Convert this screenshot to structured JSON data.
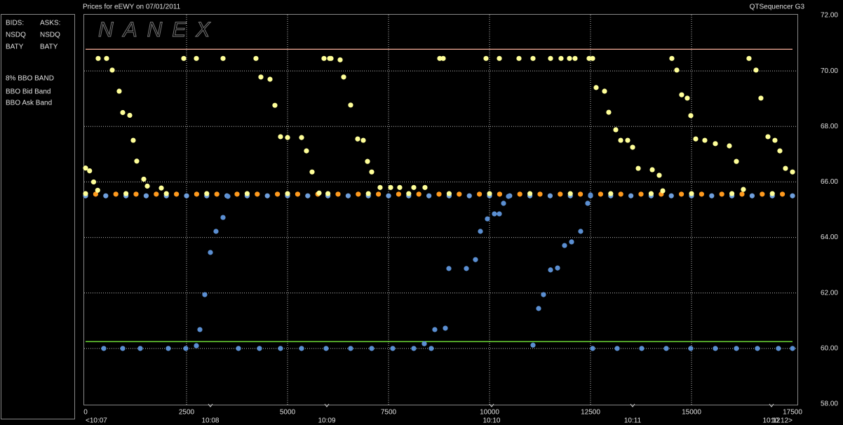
{
  "chart_data": {
    "type": "scatter",
    "title": "Prices for  eEWY  on  07/01/2011",
    "app_name": "QTSequencer G3",
    "watermark": "NANEX",
    "legend": {
      "bids_header": "BIDS:",
      "asks_header": "ASKS:",
      "band_header": "8% BBO BAND"
    },
    "xlim": [
      0,
      17500
    ],
    "xticks": [
      0,
      2500,
      5000,
      7500,
      10000,
      12500,
      15000,
      17500
    ],
    "time_ticks": [
      {
        "value": 0,
        "label": "<10:07"
      },
      {
        "value": 3090,
        "label": "10:08"
      },
      {
        "value": 5972,
        "label": "10:09"
      },
      {
        "value": 10052,
        "label": "10:10"
      },
      {
        "value": 13542,
        "label": "10:11"
      },
      {
        "value": 16979,
        "label": "10:12"
      },
      {
        "value": 17500,
        "label": "10:12>"
      }
    ],
    "ylim": [
      58,
      72
    ],
    "yticks": [
      {
        "value": 58,
        "label": "58.00"
      },
      {
        "value": 60,
        "label": "60.00"
      },
      {
        "value": 62,
        "label": "62.00"
      },
      {
        "value": 64,
        "label": "64.00"
      },
      {
        "value": 66,
        "label": "66.00"
      },
      {
        "value": 68,
        "label": "68.00"
      },
      {
        "value": 70,
        "label": "70.00"
      },
      {
        "value": 72,
        "label": "72.00"
      }
    ],
    "grid": true,
    "series": [
      {
        "name": "NSDQ",
        "side": "bid",
        "color": "#5b8fd2",
        "x": [
          451,
          920,
          1354,
          2048,
          2482,
          2743,
          2830,
          2951,
          3090,
          3229,
          3403,
          3524,
          3785,
          4305,
          4826,
          5347,
          5954,
          6562,
          7083,
          7604,
          8125,
          8385,
          8558,
          8645,
          8906,
          8993,
          9427,
          9652,
          9774,
          9947,
          10121,
          10243,
          10347,
          10468,
          11076,
          11215,
          11336,
          11510,
          11684,
          11857,
          12031,
          12256,
          12430,
          12500,
          12552,
          13160,
          13767,
          14375,
          14982,
          15590,
          16111,
          16631,
          17152,
          17500
        ],
        "values": [
          60,
          60,
          60,
          60,
          60,
          60.1,
          60.68,
          61.94,
          63.46,
          64.22,
          64.72,
          65.48,
          60,
          60,
          60,
          60,
          60,
          60,
          60,
          60,
          60,
          60.17,
          60,
          60.68,
          60.73,
          62.88,
          62.88,
          63.2,
          64.22,
          64.67,
          64.85,
          64.85,
          65.23,
          65.48,
          60.12,
          61.44,
          61.94,
          62.83,
          62.9,
          63.71,
          63.84,
          64.22,
          65.23,
          65.53,
          60,
          60,
          60,
          60,
          60,
          60,
          60,
          60,
          60,
          60
        ]
      },
      {
        "name": "NSDQ",
        "side": "ask",
        "color": "#ff9a1e",
        "x": [
          250,
          750,
          1250,
          1750,
          2250,
          2750,
          3250,
          3750,
          4250,
          4750,
          5250,
          5750,
          6250,
          6750,
          7250,
          7750,
          8250,
          8750,
          9250,
          9750,
          10250,
          10750,
          11250,
          11750,
          12250,
          12750,
          13250,
          13750,
          14250,
          14750,
          15250,
          15750,
          16250,
          16750,
          17250
        ],
        "values": [
          65.56,
          65.56,
          65.56,
          65.56,
          65.56,
          65.56,
          65.56,
          65.56,
          65.56,
          65.56,
          65.56,
          65.56,
          65.56,
          65.56,
          65.56,
          65.56,
          65.56,
          65.56,
          65.56,
          65.56,
          65.56,
          65.56,
          65.56,
          65.56,
          65.56,
          65.56,
          65.56,
          65.56,
          65.56,
          65.56,
          65.56,
          65.56,
          65.56,
          65.56,
          65.56
        ]
      },
      {
        "name": "BATY",
        "side": "bid",
        "color": "#6f9fdc",
        "x": [
          0,
          500,
          1000,
          1500,
          2000,
          2500,
          3000,
          3500,
          4000,
          4500,
          5000,
          5500,
          6000,
          6500,
          7000,
          7500,
          8000,
          8500,
          9000,
          9500,
          10000,
          10500,
          11000,
          11500,
          12000,
          12500,
          13000,
          13500,
          14000,
          14500,
          15000,
          15500,
          16000,
          16500,
          17000,
          17500
        ],
        "values": [
          65.5,
          65.5,
          65.5,
          65.5,
          65.5,
          65.5,
          65.5,
          65.5,
          65.5,
          65.5,
          65.5,
          65.5,
          65.5,
          65.5,
          65.5,
          65.5,
          65.5,
          65.5,
          65.5,
          65.5,
          65.5,
          65.5,
          65.5,
          65.5,
          65.5,
          65.5,
          65.5,
          65.5,
          65.5,
          65.5,
          65.5,
          65.5,
          65.5,
          65.5,
          65.5,
          65.5
        ]
      },
      {
        "name": "BATY",
        "side": "ask",
        "color": "#ffff99",
        "x": [
          0,
          100,
          200,
          300,
          312,
          520,
          660,
          833,
          920,
          1094,
          1180,
          1267,
          1441,
          1528,
          1875,
          2430,
          2743,
          3403,
          4218,
          4340,
          4566,
          4687,
          4826,
          5000,
          5347,
          5468,
          5607,
          5781,
          5902,
          6041,
          6076,
          6302,
          6389,
          6562,
          6736,
          6875,
          6979,
          7083,
          7291,
          7552,
          7777,
          8125,
          8402,
          8767,
          8854,
          9913,
          10243,
          10729,
          11076,
          11510,
          11770,
          11979,
          12117,
          12465,
          12552,
          12639,
          12847,
          12951,
          13125,
          13247,
          13420,
          13542,
          13681,
          14028,
          14201,
          14288,
          14513,
          14635,
          14756,
          14895,
          14982,
          15104,
          15329,
          15590,
          15937,
          16111,
          16284,
          16423,
          16597,
          16718,
          16892,
          17065,
          17187,
          17326,
          17500,
          0,
          1000,
          2000,
          3000,
          4000,
          5000,
          6000,
          7000,
          8000,
          9000,
          10000,
          11000,
          12000,
          13000,
          14000,
          15000,
          16000,
          17000
        ],
        "values": [
          66.5,
          66.4,
          66.0,
          65.7,
          70.45,
          70.45,
          70.03,
          69.27,
          68.5,
          68.4,
          67.5,
          66.75,
          66.1,
          65.85,
          65.78,
          70.45,
          70.45,
          70.45,
          70.45,
          69.78,
          69.7,
          68.76,
          67.63,
          67.6,
          67.6,
          67.12,
          66.36,
          65.6,
          70.45,
          70.45,
          70.45,
          70.4,
          69.78,
          68.77,
          67.55,
          67.5,
          66.74,
          66.36,
          65.8,
          65.8,
          65.8,
          65.8,
          65.8,
          70.45,
          70.45,
          70.45,
          70.45,
          70.45,
          70.45,
          70.45,
          70.45,
          70.45,
          70.45,
          70.45,
          70.45,
          69.4,
          69.27,
          68.51,
          67.88,
          67.5,
          67.5,
          67.25,
          66.49,
          66.44,
          66.24,
          65.68,
          70.45,
          70.03,
          69.14,
          69.02,
          68.39,
          67.55,
          67.5,
          67.38,
          67.3,
          66.74,
          65.73,
          70.45,
          70.03,
          69.02,
          67.63,
          67.5,
          67.12,
          66.49,
          66.36,
          65.58,
          65.58,
          65.58,
          65.58,
          65.58,
          65.58,
          65.58,
          65.58,
          65.58,
          65.58,
          65.58,
          65.58,
          65.58,
          65.58,
          65.58,
          65.58,
          65.58,
          65.58
        ]
      },
      {
        "name": "BBO Bid Band",
        "mode": "line",
        "color": "#80ff40",
        "x": [
          0,
          17500
        ],
        "values": [
          60.25,
          60.25
        ]
      },
      {
        "name": "BBO Ask Band",
        "mode": "line",
        "color": "#ffb4a0",
        "x": [
          0,
          17500
        ],
        "values": [
          70.78,
          70.78
        ]
      }
    ]
  }
}
